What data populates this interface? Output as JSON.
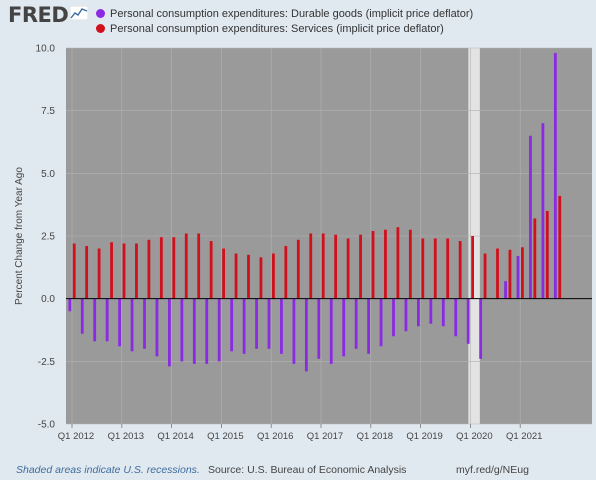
{
  "header": {
    "logo_text": "FRED",
    "legend": [
      {
        "label": "Personal consumption expenditures: Durable goods (implicit price deflator)",
        "color": "#8a2be2"
      },
      {
        "label": "Personal consumption expenditures: Services (implicit price deflator)",
        "color": "#d0101c"
      }
    ]
  },
  "footer": {
    "note": "Shaded areas indicate U.S. recessions.",
    "source": "Source: U.S. Bureau of Economic Analysis",
    "url": "myf.red/g/NEug"
  },
  "colors": {
    "plot_bg": "#9a9a9a",
    "recession": "#e3e3e3",
    "durable": "#8a2be2",
    "services": "#d0101c"
  },
  "chart_data": {
    "type": "bar",
    "ylabel": "Percent Change from Year Ago",
    "ylim": [
      -5.0,
      10.0
    ],
    "yticks": [
      "10.0",
      "7.5",
      "5.0",
      "2.5",
      "0.0",
      "-2.5",
      "-5.0"
    ],
    "ytick_values": [
      10,
      7.5,
      5,
      2.5,
      0,
      -2.5,
      -5
    ],
    "xticks": [
      "Q1 2012",
      "Q1 2013",
      "Q1 2014",
      "Q1 2015",
      "Q1 2016",
      "Q1 2017",
      "Q1 2018",
      "Q1 2019",
      "Q1 2020",
      "Q1 2021"
    ],
    "recession": {
      "start": "2020 Q1",
      "end": "2020 Q2"
    },
    "grid": true,
    "legend_position": "top",
    "categories": [
      "2012Q1",
      "2012Q2",
      "2012Q3",
      "2012Q4",
      "2013Q1",
      "2013Q2",
      "2013Q3",
      "2013Q4",
      "2014Q1",
      "2014Q2",
      "2014Q3",
      "2014Q4",
      "2015Q1",
      "2015Q2",
      "2015Q3",
      "2015Q4",
      "2016Q1",
      "2016Q2",
      "2016Q3",
      "2016Q4",
      "2017Q1",
      "2017Q2",
      "2017Q3",
      "2017Q4",
      "2018Q1",
      "2018Q2",
      "2018Q3",
      "2018Q4",
      "2019Q1",
      "2019Q2",
      "2019Q3",
      "2019Q4",
      "2020Q1",
      "2020Q2",
      "2020Q3",
      "2020Q4",
      "2021Q1",
      "2021Q2",
      "2021Q3",
      "2021Q4"
    ],
    "series": [
      {
        "name": "Personal consumption expenditures: Durable goods (implicit price deflator)",
        "values": [
          -0.5,
          -1.4,
          -1.7,
          -1.7,
          -1.9,
          -2.1,
          -2.0,
          -2.3,
          -2.7,
          -2.5,
          -2.6,
          -2.6,
          -2.5,
          -2.1,
          -2.2,
          -2.0,
          -2.0,
          -2.2,
          -2.6,
          -2.9,
          -2.4,
          -2.6,
          -2.3,
          -2.0,
          -2.2,
          -1.9,
          -1.5,
          -1.3,
          -1.1,
          -1.0,
          -1.1,
          -1.5,
          -1.8,
          -2.4,
          0.0,
          0.7,
          1.7,
          6.5,
          7.0,
          9.8
        ]
      },
      {
        "name": "Personal consumption expenditures: Services (implicit price deflator)",
        "values": [
          2.2,
          2.1,
          2.0,
          2.25,
          2.2,
          2.2,
          2.35,
          2.45,
          2.45,
          2.6,
          2.6,
          2.3,
          2.0,
          1.8,
          1.75,
          1.65,
          1.8,
          2.1,
          2.35,
          2.6,
          2.6,
          2.55,
          2.4,
          2.55,
          2.7,
          2.75,
          2.85,
          2.75,
          2.4,
          2.4,
          2.4,
          2.3,
          2.5,
          1.8,
          2.0,
          1.95,
          2.05,
          3.2,
          3.5,
          4.1
        ]
      }
    ]
  }
}
